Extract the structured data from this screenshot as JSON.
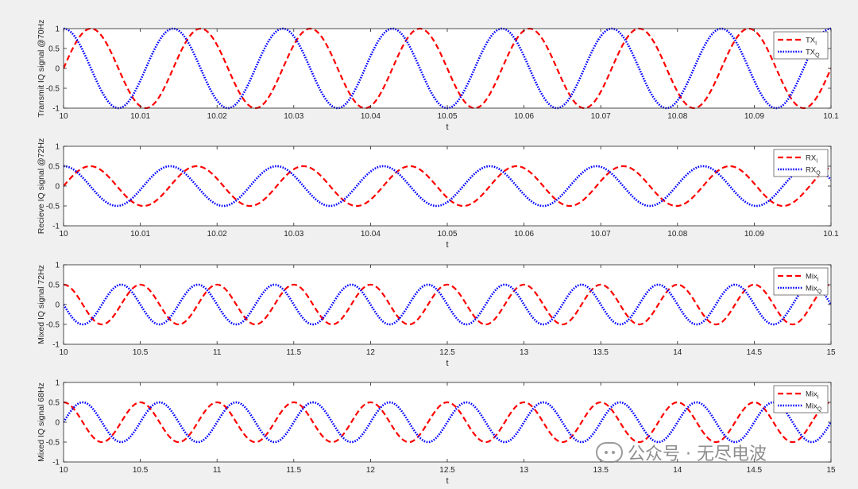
{
  "chart_data": [
    {
      "type": "line",
      "ylabel": "Transmit IQ signal @70Hz",
      "xlabel": "t",
      "xlim": [
        10,
        10.1
      ],
      "ylim": [
        -1,
        1
      ],
      "xticks": [
        "10",
        "10.01",
        "10.02",
        "10.03",
        "10.04",
        "10.05",
        "10.06",
        "10.07",
        "10.08",
        "10.09",
        "10.1"
      ],
      "yticks": [
        "-1",
        "-0.5",
        "0",
        "0.5",
        "1"
      ],
      "legend": "top-right",
      "series": [
        {
          "name": "TX",
          "sub": "I",
          "func": "sin",
          "freq_hz": 70,
          "amplitude": 1,
          "color": "#ff0000",
          "style": "dashed"
        },
        {
          "name": "TX",
          "sub": "Q",
          "func": "cos",
          "freq_hz": 70,
          "amplitude": 1,
          "color": "#0000ff",
          "style": "dotted"
        }
      ]
    },
    {
      "type": "line",
      "ylabel": "Recieve IQ signal @72Hz",
      "xlabel": "t",
      "xlim": [
        10,
        10.1
      ],
      "ylim": [
        -1,
        1
      ],
      "xticks": [
        "10",
        "10.01",
        "10.02",
        "10.03",
        "10.04",
        "10.05",
        "10.06",
        "10.07",
        "10.08",
        "10.09",
        "10.1"
      ],
      "yticks": [
        "-1",
        "-0.5",
        "0",
        "0.5",
        "1"
      ],
      "legend": "top-right",
      "series": [
        {
          "name": "RX",
          "sub": "I",
          "func": "sin",
          "freq_hz": 72,
          "amplitude": 0.5,
          "color": "#ff0000",
          "style": "dashed"
        },
        {
          "name": "RX",
          "sub": "Q",
          "func": "cos",
          "freq_hz": 72,
          "amplitude": 0.5,
          "color": "#0000ff",
          "style": "dotted"
        }
      ]
    },
    {
      "type": "line",
      "ylabel": "Mixed IQ signal 72Hz",
      "xlabel": "t",
      "xlim": [
        10,
        15
      ],
      "ylim": [
        -1,
        1
      ],
      "xticks": [
        "10",
        "10.5",
        "11",
        "11.5",
        "12",
        "12.5",
        "13",
        "13.5",
        "14",
        "14.5",
        "15"
      ],
      "yticks": [
        "-1",
        "-0.5",
        "0",
        "0.5",
        "1"
      ],
      "legend": "top-right",
      "series": [
        {
          "name": "Mix",
          "sub": "I",
          "func": "cos",
          "freq_hz": 2,
          "amplitude": 0.5,
          "color": "#ff0000",
          "style": "dashed"
        },
        {
          "name": "Mix",
          "sub": "Q",
          "func": "-sin",
          "freq_hz": 2,
          "amplitude": 0.5,
          "color": "#0000ff",
          "style": "dotted"
        }
      ]
    },
    {
      "type": "line",
      "ylabel": "Mixed IQ signal 68Hz",
      "xlabel": "t",
      "xlim": [
        10,
        15
      ],
      "ylim": [
        -1,
        1
      ],
      "xticks": [
        "10",
        "10.5",
        "11",
        "11.5",
        "12",
        "12.5",
        "13",
        "13.5",
        "14",
        "14.5",
        "15"
      ],
      "yticks": [
        "-1",
        "-0.5",
        "0",
        "0.5",
        "1"
      ],
      "legend": "top-right",
      "series": [
        {
          "name": "Mix",
          "sub": "I",
          "func": "cos",
          "freq_hz": 2,
          "amplitude": 0.5,
          "color": "#ff0000",
          "style": "dashed"
        },
        {
          "name": "Mix",
          "sub": "Q",
          "func": "sin",
          "freq_hz": 2,
          "amplitude": 0.5,
          "color": "#0000ff",
          "style": "dotted"
        }
      ]
    }
  ],
  "watermark": {
    "text": "公众号 · 无尽电波",
    "icon": "wechat-icon"
  }
}
